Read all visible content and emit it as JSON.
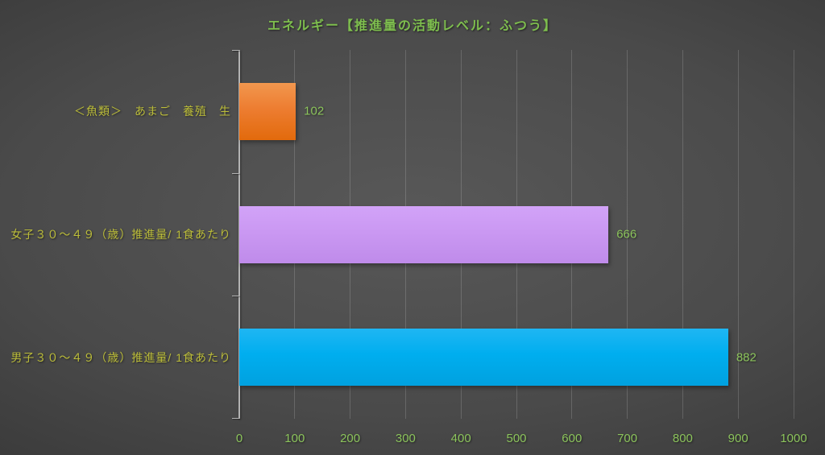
{
  "chart_data": {
    "type": "bar",
    "orientation": "horizontal",
    "title": "エネルギー【推進量の活動レベル：ふつう】",
    "categories": [
      "＜魚類＞　あまご　養殖　生",
      "女子３０～４９（歳）推進量/ 1食あたり",
      "男子３０～４９（歳）推進量/ 1食あたり"
    ],
    "values": [
      102,
      666,
      882
    ],
    "data_labels": [
      "102",
      "666",
      "882"
    ],
    "xlabel": "",
    "ylabel": "",
    "xlim": [
      0,
      1000
    ],
    "x_ticks": [
      0,
      100,
      200,
      300,
      400,
      500,
      600,
      700,
      800,
      900,
      1000
    ],
    "grid": true,
    "legend": false,
    "bar_styles": [
      {
        "name": "orange",
        "top": "#F2974E",
        "mid": "#ED7D31",
        "bottom": "#E26A0C"
      },
      {
        "name": "lavender",
        "top": "#D2A3F8",
        "mid": "#CA98F2",
        "bottom": "#BF8BEA"
      },
      {
        "name": "cyan",
        "top": "#1FB6F3",
        "mid": "#00AEEF",
        "bottom": "#00A1DF"
      }
    ]
  },
  "colors": {
    "title": "#7EBE4E",
    "category_label": "#BCBD3A",
    "value_label": "#8CC45C",
    "tick_label": "#8CC45C",
    "axis_line": "#B3B3B3",
    "gridline": "rgba(255,255,255,0.16)",
    "background_center": "#585858",
    "background_edge": "#282828"
  }
}
